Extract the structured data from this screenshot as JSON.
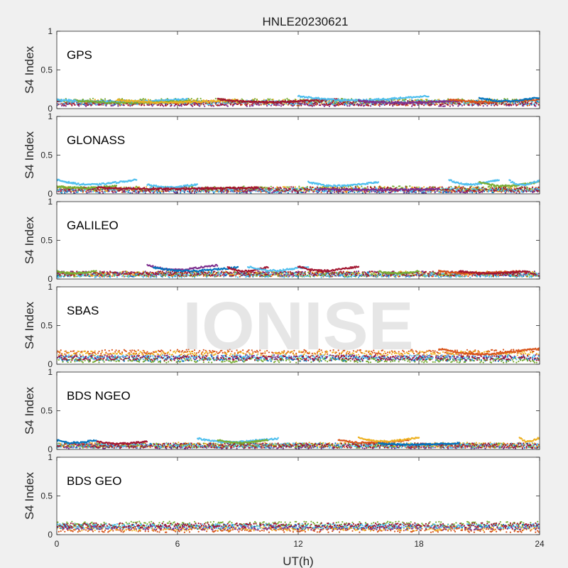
{
  "figure": {
    "title": "HNLE20230621",
    "watermark": "IONISE",
    "background": "#f0f0f0"
  },
  "chart_data": {
    "type": "scatter",
    "title": "HNLE20230621",
    "xlabel": "UT(h)",
    "ylabel": "S4 Index",
    "xlim": [
      0,
      24
    ],
    "ylim": [
      0,
      1
    ],
    "xticks": [
      0,
      6,
      12,
      18,
      24
    ],
    "xtick_labels": [
      "0",
      "6",
      "12",
      "18",
      "24"
    ],
    "yticks": [
      0,
      0.5,
      1
    ],
    "ytick_labels": [
      "0",
      "0.5",
      "1"
    ],
    "grid": false,
    "series_colors": [
      "#0072bd",
      "#d95319",
      "#edb120",
      "#7e2f8e",
      "#77ac30",
      "#4dbeee",
      "#a2142f"
    ],
    "panels": [
      {
        "label": "GPS",
        "base_s4": [
          0.08,
          0.07,
          0.09,
          0.06,
          0.1,
          0.08,
          0.07
        ],
        "arcs": [
          {
            "series": 5,
            "start": 0.0,
            "end": 6.5,
            "peak": 0.12
          },
          {
            "series": 4,
            "start": 1.0,
            "end": 7.0,
            "peak": 0.1
          },
          {
            "series": 2,
            "start": 3.0,
            "end": 9.0,
            "peak": 0.11
          },
          {
            "series": 6,
            "start": 8.0,
            "end": 14.0,
            "peak": 0.12
          },
          {
            "series": 5,
            "start": 12.0,
            "end": 18.5,
            "peak": 0.16
          },
          {
            "series": 3,
            "start": 15.0,
            "end": 20.0,
            "peak": 0.1
          },
          {
            "series": 1,
            "start": 19.5,
            "end": 24.0,
            "peak": 0.12
          },
          {
            "series": 0,
            "start": 21.0,
            "end": 24.0,
            "peak": 0.14
          }
        ]
      },
      {
        "label": "GLONASS",
        "base_s4": [
          0.04,
          0.05,
          0.06,
          0.04,
          0.07,
          0.05,
          0.06
        ],
        "arcs": [
          {
            "series": 5,
            "start": 0.0,
            "end": 4.0,
            "peak": 0.18
          },
          {
            "series": 4,
            "start": 0.0,
            "end": 3.0,
            "peak": 0.1
          },
          {
            "series": 5,
            "start": 4.5,
            "end": 7.0,
            "peak": 0.12
          },
          {
            "series": 6,
            "start": 2.0,
            "end": 10.0,
            "peak": 0.08
          },
          {
            "series": 5,
            "start": 12.5,
            "end": 16.0,
            "peak": 0.15
          },
          {
            "series": 3,
            "start": 13.0,
            "end": 19.0,
            "peak": 0.06
          },
          {
            "series": 5,
            "start": 19.5,
            "end": 22.0,
            "peak": 0.18
          },
          {
            "series": 4,
            "start": 21.0,
            "end": 24.0,
            "peak": 0.15
          },
          {
            "series": 5,
            "start": 22.5,
            "end": 24.0,
            "peak": 0.17
          }
        ]
      },
      {
        "label": "GALILEO",
        "base_s4": [
          0.06,
          0.06,
          0.07,
          0.07,
          0.06,
          0.05,
          0.07
        ],
        "arcs": [
          {
            "series": 4,
            "start": 0.0,
            "end": 2.0,
            "peak": 0.1
          },
          {
            "series": 3,
            "start": 4.5,
            "end": 8.0,
            "peak": 0.18
          },
          {
            "series": 0,
            "start": 4.8,
            "end": 9.0,
            "peak": 0.15
          },
          {
            "series": 6,
            "start": 8.5,
            "end": 10.5,
            "peak": 0.15
          },
          {
            "series": 5,
            "start": 9.5,
            "end": 12.5,
            "peak": 0.16
          },
          {
            "series": 6,
            "start": 12.0,
            "end": 15.0,
            "peak": 0.16
          },
          {
            "series": 4,
            "start": 16.0,
            "end": 18.0,
            "peak": 0.1
          },
          {
            "series": 1,
            "start": 19.0,
            "end": 23.0,
            "peak": 0.1
          },
          {
            "series": 6,
            "start": 20.0,
            "end": 23.5,
            "peak": 0.1
          }
        ]
      },
      {
        "label": "SBAS",
        "base_s4": [
          0.07,
          0.16,
          0.14,
          0.09,
          0.05,
          0.09,
          0.08
        ],
        "arcs": [
          {
            "series": 1,
            "start": 19.0,
            "end": 24.0,
            "peak": 0.2
          }
        ]
      },
      {
        "label": "BDS NGEO",
        "base_s4": [
          0.05,
          0.05,
          0.06,
          0.04,
          0.05,
          0.05,
          0.05
        ],
        "arcs": [
          {
            "series": 0,
            "start": 0.0,
            "end": 2.0,
            "peak": 0.12
          },
          {
            "series": 6,
            "start": 2.0,
            "end": 4.5,
            "peak": 0.1
          },
          {
            "series": 5,
            "start": 7.0,
            "end": 11.0,
            "peak": 0.14
          },
          {
            "series": 4,
            "start": 8.0,
            "end": 10.5,
            "peak": 0.12
          },
          {
            "series": 1,
            "start": 14.0,
            "end": 17.5,
            "peak": 0.12
          },
          {
            "series": 2,
            "start": 15.0,
            "end": 18.0,
            "peak": 0.15
          },
          {
            "series": 0,
            "start": 16.0,
            "end": 20.0,
            "peak": 0.08
          },
          {
            "series": 2,
            "start": 23.0,
            "end": 24.0,
            "peak": 0.15
          }
        ]
      },
      {
        "label": "BDS GEO",
        "base_s4": [
          0.1,
          0.06,
          0.08,
          0.09,
          0.14,
          0.11,
          0.12
        ],
        "arcs": []
      }
    ]
  }
}
